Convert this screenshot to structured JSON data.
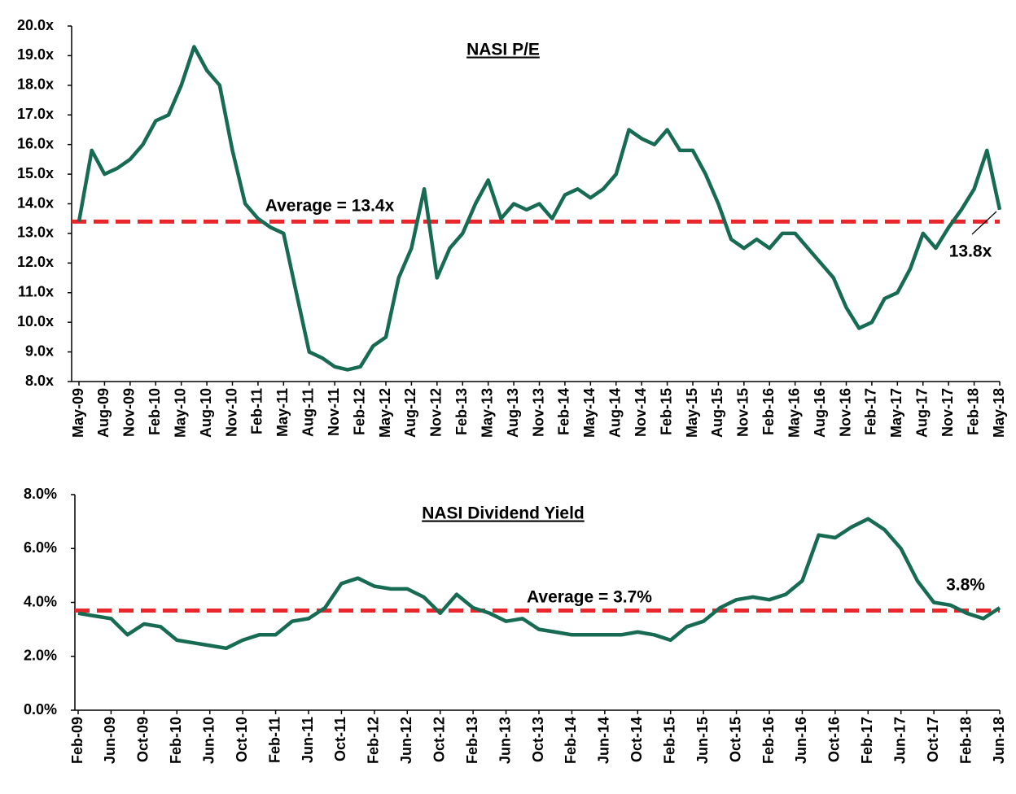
{
  "chart_data": [
    {
      "type": "line",
      "title": "NASI P/E",
      "categories": [
        "May-09",
        null,
        "Aug-09",
        null,
        "Nov-09",
        null,
        "Feb-10",
        null,
        "May-10",
        null,
        "Aug-10",
        null,
        "Nov-10",
        null,
        "Feb-11",
        null,
        "May-11",
        null,
        "Aug-11",
        null,
        "Nov-11",
        null,
        "Feb-12",
        null,
        "May-12",
        null,
        "Aug-12",
        null,
        "Nov-12",
        null,
        "Feb-13",
        null,
        "May-13",
        null,
        "Aug-13",
        null,
        "Nov-13",
        null,
        "Feb-14",
        null,
        "May-14",
        null,
        "Aug-14",
        null,
        "Nov-14",
        null,
        "Feb-15",
        null,
        "May-15",
        null,
        "Aug-15",
        null,
        "Nov-15",
        null,
        "Feb-16",
        null,
        "May-16",
        null,
        "Aug-16",
        null,
        "Nov-16",
        null,
        "Feb-17",
        null,
        "May-17",
        null,
        "Aug-17",
        null,
        "Nov-17",
        null,
        "Feb-18",
        null,
        "May-18"
      ],
      "series": [
        {
          "name": "NASI P/E",
          "color": "#176b52",
          "values": [
            13.4,
            15.8,
            15.0,
            15.2,
            15.5,
            16.0,
            16.8,
            17.0,
            18.0,
            19.3,
            18.5,
            18.0,
            15.8,
            14.0,
            13.5,
            13.2,
            13.0,
            11.0,
            9.0,
            8.8,
            8.5,
            8.4,
            8.5,
            9.2,
            9.5,
            11.5,
            12.5,
            14.5,
            11.5,
            12.5,
            13.0,
            14.0,
            14.8,
            13.5,
            14.0,
            13.8,
            14.0,
            13.5,
            14.3,
            14.5,
            14.2,
            14.5,
            15.0,
            16.5,
            16.2,
            16.0,
            16.5,
            15.8,
            15.8,
            15.0,
            14.0,
            12.8,
            12.5,
            12.8,
            12.5,
            13.0,
            13.0,
            12.5,
            12.0,
            11.5,
            10.5,
            9.8,
            10.0,
            10.8,
            11.0,
            11.8,
            13.0,
            12.5,
            13.2,
            13.8,
            14.5,
            15.8,
            13.8
          ]
        }
      ],
      "ylim": [
        8,
        20
      ],
      "yticks": [
        {
          "value": 8,
          "label": "8.0x"
        },
        {
          "value": 9,
          "label": "9.0x"
        },
        {
          "value": 10,
          "label": "10.0x"
        },
        {
          "value": 11,
          "label": "11.0x"
        },
        {
          "value": 12,
          "label": "12.0x"
        },
        {
          "value": 13,
          "label": "13.0x"
        },
        {
          "value": 14,
          "label": "14.0x"
        },
        {
          "value": 15,
          "label": "15.0x"
        },
        {
          "value": 16,
          "label": "16.0x"
        },
        {
          "value": 17,
          "label": "17.0x"
        },
        {
          "value": 18,
          "label": "18.0x"
        },
        {
          "value": 19,
          "label": "19.0x"
        },
        {
          "value": 20,
          "label": "20.0x"
        }
      ],
      "average_line": {
        "value": 13.4,
        "label": "Average = 13.4x",
        "color": "#e8262b"
      },
      "end_label": "13.8x"
    },
    {
      "type": "line",
      "title": "NASI Dividend Yield",
      "categories": [
        "Feb-09",
        null,
        "Jun-09",
        null,
        "Oct-09",
        null,
        "Feb-10",
        null,
        "Jun-10",
        null,
        "Oct-10",
        null,
        "Feb-11",
        null,
        "Jun-11",
        null,
        "Oct-11",
        null,
        "Feb-12",
        null,
        "Jun-12",
        null,
        "Oct-12",
        null,
        "Feb-13",
        null,
        "Jun-13",
        null,
        "Oct-13",
        null,
        "Feb-14",
        null,
        "Jun-14",
        null,
        "Oct-14",
        null,
        "Feb-15",
        null,
        "Jun-15",
        null,
        "Oct-15",
        null,
        "Feb-16",
        null,
        "Jun-16",
        null,
        "Oct-16",
        null,
        "Feb-17",
        null,
        "Jun-17",
        null,
        "Oct-17",
        null,
        "Feb-18",
        null,
        "Jun-18"
      ],
      "series": [
        {
          "name": "NASI Dividend Yield",
          "color": "#176b52",
          "values": [
            3.6,
            3.5,
            3.4,
            2.8,
            3.2,
            3.1,
            2.6,
            2.5,
            2.4,
            2.3,
            2.6,
            2.8,
            2.8,
            3.3,
            3.4,
            3.8,
            4.7,
            4.9,
            4.6,
            4.5,
            4.5,
            4.2,
            3.6,
            4.3,
            3.8,
            3.6,
            3.3,
            3.4,
            3.0,
            2.9,
            2.8,
            2.8,
            2.8,
            2.8,
            2.9,
            2.8,
            2.6,
            3.1,
            3.3,
            3.8,
            4.1,
            4.2,
            4.1,
            4.3,
            4.8,
            6.5,
            6.4,
            6.8,
            7.1,
            6.7,
            6.0,
            4.8,
            4.0,
            3.9,
            3.6,
            3.4,
            3.8
          ]
        }
      ],
      "ylim": [
        0,
        8
      ],
      "yticks": [
        {
          "value": 0,
          "label": "0.0%"
        },
        {
          "value": 2,
          "label": "2.0%"
        },
        {
          "value": 4,
          "label": "4.0%"
        },
        {
          "value": 6,
          "label": "6.0%"
        },
        {
          "value": 8,
          "label": "8.0%"
        }
      ],
      "average_line": {
        "value": 3.7,
        "label": "Average = 3.7%",
        "color": "#e8262b"
      },
      "end_label": "3.8%"
    }
  ]
}
